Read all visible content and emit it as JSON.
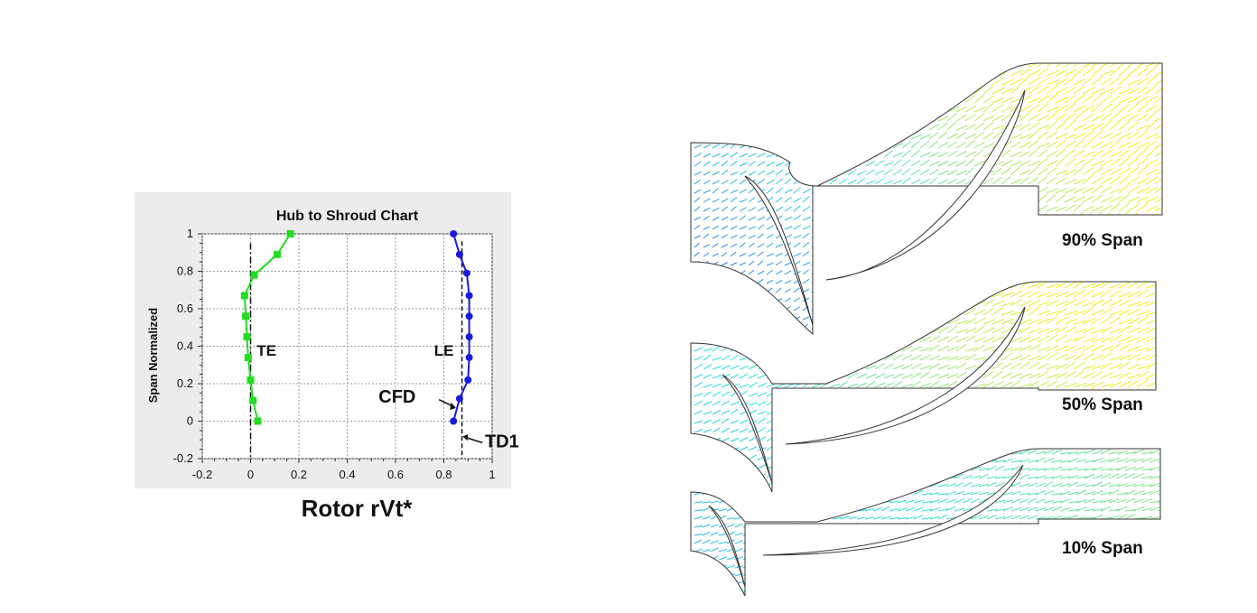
{
  "chart_data": {
    "type": "line",
    "title": "Hub to Shroud Chart",
    "xlabel": "Rotor rVt*",
    "ylabel": "Span Normalized",
    "xlim": [
      -0.2,
      1.0
    ],
    "ylim": [
      -0.2,
      1.0
    ],
    "x_ticks": [
      "-0.2",
      "0",
      "0.2",
      "0.4",
      "0.6",
      "0.8",
      "1"
    ],
    "y_ticks": [
      "1",
      "0.8",
      "0.6",
      "0.4",
      "0.2",
      "0",
      "-0.2"
    ],
    "grid": true,
    "series": [
      {
        "name": "TE",
        "color": "#22dd22",
        "marker": "square",
        "points": [
          [
            0.03,
            0.0
          ],
          [
            0.01,
            0.11
          ],
          [
            0.0,
            0.22
          ],
          [
            -0.01,
            0.34
          ],
          [
            -0.015,
            0.45
          ],
          [
            -0.02,
            0.56
          ],
          [
            -0.025,
            0.67
          ],
          [
            0.015,
            0.78
          ],
          [
            0.11,
            0.89
          ],
          [
            0.165,
            1.0
          ]
        ]
      },
      {
        "name": "LE",
        "color": "#1a1adf",
        "marker": "circle",
        "points": [
          [
            0.84,
            0.0
          ],
          [
            0.865,
            0.12
          ],
          [
            0.9,
            0.22
          ],
          [
            0.905,
            0.34
          ],
          [
            0.905,
            0.45
          ],
          [
            0.905,
            0.56
          ],
          [
            0.905,
            0.67
          ],
          [
            0.895,
            0.79
          ],
          [
            0.865,
            0.89
          ],
          [
            0.84,
            1.0
          ]
        ]
      }
    ],
    "reference_lines": [
      {
        "name": "TE reference",
        "x": 0.0,
        "style": "dash-dot"
      },
      {
        "name": "TD1",
        "x": 0.875,
        "style": "dashed"
      }
    ],
    "annotations": [
      "TE",
      "LE",
      "CFD",
      "TD1"
    ]
  },
  "flow_panels": [
    {
      "label": "90% Span"
    },
    {
      "label": "50% Span"
    },
    {
      "label": "10% Span"
    }
  ],
  "colors": {
    "panel_bg": "#ececec",
    "grid": "#9a9a9a",
    "flow_low": "#3355ff",
    "flow_mid": "#22dddd",
    "flow_high": "#eeee22"
  }
}
